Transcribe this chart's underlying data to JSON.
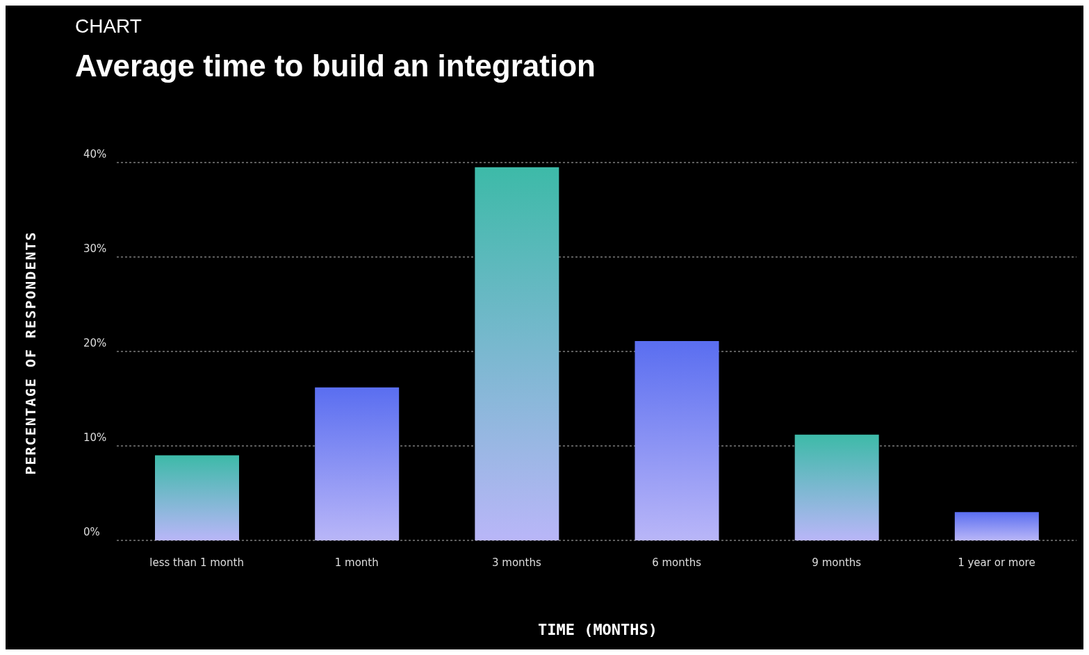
{
  "chart_data": {
    "type": "bar",
    "subtitle": "CHART",
    "title": "Average time to build an integration",
    "xlabel": "TIME (MONTHS)",
    "ylabel": "PERCENTAGE OF RESPONDENTS",
    "categories": [
      "less than 1 month",
      "1 month",
      "3 months",
      "6 months",
      "9 months",
      "1 year or more"
    ],
    "values": [
      9.0,
      16.2,
      39.5,
      21.1,
      11.2,
      3.0
    ],
    "colors": [
      "#3dbaa8",
      "#5a6ef0",
      "#3dbaa8",
      "#5a6ef0",
      "#3dbaa8",
      "#5a6ef0"
    ],
    "ylim": [
      0,
      40
    ],
    "yticks": [
      {
        "value": 0,
        "label": "0%"
      },
      {
        "value": 10,
        "label": "10%"
      },
      {
        "value": 20,
        "label": "20%"
      },
      {
        "value": 30,
        "label": "30%"
      },
      {
        "value": 40,
        "label": "40%"
      }
    ],
    "grid": "y"
  }
}
